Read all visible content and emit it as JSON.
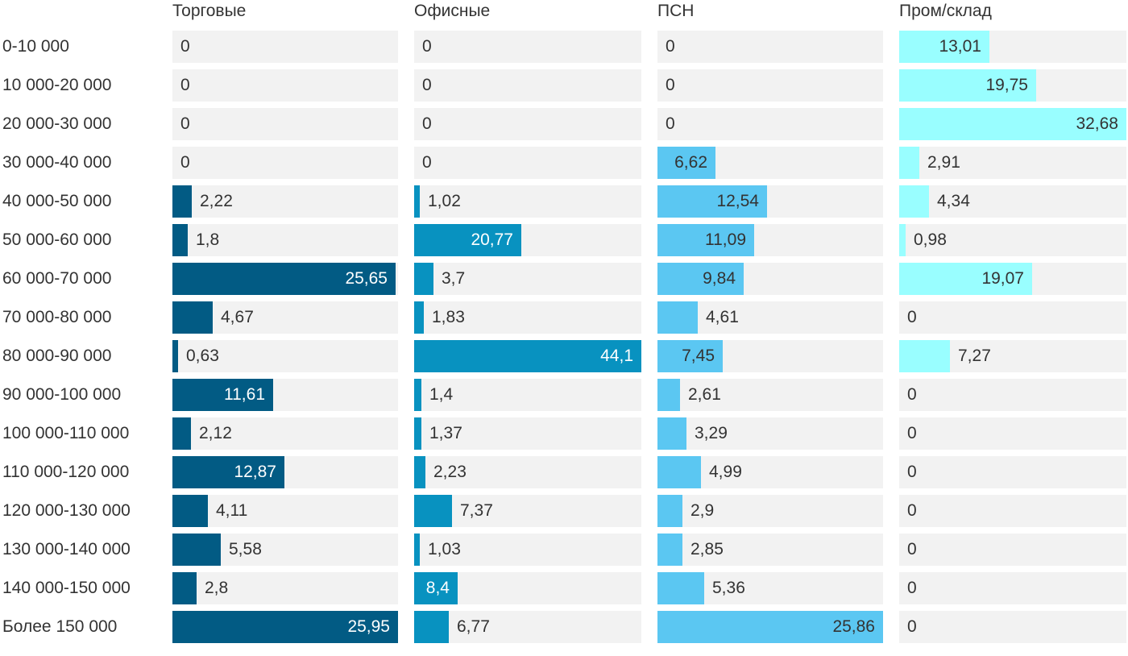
{
  "chart_data": {
    "type": "bar",
    "orientation": "horizontal",
    "layout": "small-multiples",
    "categories": [
      "0-10 000",
      "10 000-20 000",
      "20 000-30 000",
      "30 000-40 000",
      "40 000-50 000",
      "50 000-60 000",
      "60 000-70 000",
      "70 000-80 000",
      "80 000-90 000",
      "90 000-100 000",
      "100 000-110 000",
      "110 000-120 000",
      "120 000-130 000",
      "130 000-140 000",
      "140 000-150 000",
      "Более 150 000"
    ],
    "series": [
      {
        "name": "Торговые",
        "color": "#025b84",
        "label_color_inside": "#ffffff",
        "values": [
          0,
          0,
          0,
          0,
          2.22,
          1.8,
          25.65,
          4.67,
          0.63,
          11.61,
          2.12,
          12.87,
          4.11,
          5.58,
          2.8,
          25.95
        ],
        "labels": [
          "0",
          "0",
          "0",
          "0",
          "2,22",
          "1,8",
          "25,65",
          "4,67",
          "0,63",
          "11,61",
          "2,12",
          "12,87",
          "4,11",
          "5,58",
          "2,8",
          "25,95"
        ],
        "label_inside": [
          false,
          false,
          false,
          false,
          false,
          false,
          true,
          false,
          false,
          true,
          false,
          true,
          false,
          false,
          false,
          true
        ]
      },
      {
        "name": "Офисные",
        "color": "#0892c0",
        "label_color_inside": "#ffffff",
        "values": [
          0,
          0,
          0,
          0,
          1.02,
          20.77,
          3.7,
          1.83,
          44.1,
          1.4,
          1.37,
          2.23,
          7.37,
          1.03,
          8.4,
          6.77
        ],
        "labels": [
          "0",
          "0",
          "0",
          "0",
          "1,02",
          "20,77",
          "3,7",
          "1,83",
          "44,1",
          "1,4",
          "1,37",
          "2,23",
          "7,37",
          "1,03",
          "8,4",
          "6,77"
        ],
        "label_inside": [
          false,
          false,
          false,
          false,
          false,
          true,
          false,
          false,
          true,
          false,
          false,
          false,
          false,
          false,
          true,
          false
        ]
      },
      {
        "name": "ПСН",
        "color": "#5bc7f2",
        "label_color_inside": "#333333",
        "values": [
          0,
          0,
          0,
          6.62,
          12.54,
          11.09,
          9.84,
          4.61,
          7.45,
          2.61,
          3.29,
          4.99,
          2.9,
          2.85,
          5.36,
          25.86
        ],
        "labels": [
          "0",
          "0",
          "0",
          "6,62",
          "12,54",
          "11,09",
          "9,84",
          "4,61",
          "7,45",
          "2,61",
          "3,29",
          "4,99",
          "2,9",
          "2,85",
          "5,36",
          "25,86"
        ],
        "label_inside": [
          false,
          false,
          false,
          true,
          true,
          true,
          true,
          false,
          true,
          false,
          false,
          false,
          false,
          false,
          false,
          true
        ]
      },
      {
        "name": "Пром/склад",
        "color": "#99feff",
        "label_color_inside": "#333333",
        "values": [
          13.01,
          19.75,
          32.68,
          2.91,
          4.34,
          0.98,
          19.07,
          0,
          7.27,
          0,
          0,
          0,
          0,
          0,
          0,
          0
        ],
        "labels": [
          "13,01",
          "19,75",
          "32,68",
          "2,91",
          "4,34",
          "0,98",
          "19,07",
          "0",
          "7,27",
          "0",
          "0",
          "0",
          "0",
          "0",
          "0",
          "0"
        ],
        "label_inside": [
          true,
          true,
          true,
          false,
          false,
          false,
          true,
          false,
          false,
          false,
          false,
          false,
          false,
          false,
          false,
          false
        ]
      }
    ],
    "scale": "each panel scaled to its own maximum",
    "track_color": "#f2f2f2",
    "text_color": "#333333"
  }
}
